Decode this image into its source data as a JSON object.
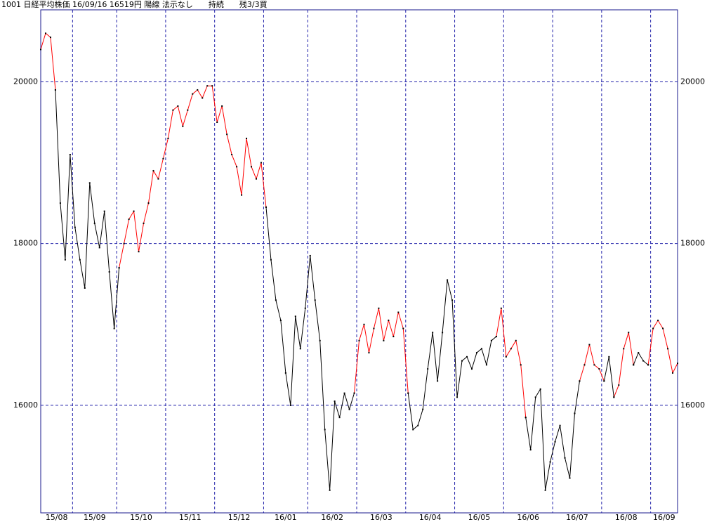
{
  "chart_data": {
    "type": "line",
    "title": "1001 日経平均株価 16/09/16 16519円 陽線 法示なし　　持続　　残3/3買",
    "categories": [
      "15/08",
      null,
      null,
      null,
      null,
      null,
      null,
      "15/09",
      null,
      null,
      null,
      null,
      null,
      null,
      null,
      null,
      "15/10",
      null,
      null,
      null,
      null,
      null,
      null,
      null,
      null,
      null,
      "15/11",
      null,
      null,
      null,
      null,
      null,
      null,
      null,
      null,
      null,
      "15/12",
      null,
      null,
      null,
      null,
      null,
      null,
      null,
      null,
      null,
      "16/01",
      null,
      null,
      null,
      null,
      null,
      null,
      null,
      null,
      "16/02",
      null,
      null,
      null,
      null,
      null,
      null,
      null,
      null,
      null,
      "16/03",
      null,
      null,
      null,
      null,
      null,
      null,
      null,
      null,
      null,
      "16/04",
      null,
      null,
      null,
      null,
      null,
      null,
      null,
      null,
      null,
      "16/05",
      null,
      null,
      null,
      null,
      null,
      null,
      null,
      null,
      null,
      "16/06",
      null,
      null,
      null,
      null,
      null,
      null,
      null,
      null,
      null,
      "16/07",
      null,
      null,
      null,
      null,
      null,
      null,
      null,
      null,
      null,
      "16/08",
      null,
      null,
      null,
      null,
      null,
      null,
      null,
      null,
      null,
      "16/09",
      null,
      null,
      null,
      null,
      null
    ],
    "series": [
      {
        "color": "#ff0000",
        "values": [
          20400,
          20600,
          20550,
          19900,
          null,
          null,
          null,
          null,
          null,
          null,
          null,
          null,
          null,
          null,
          null,
          null,
          17700,
          18000,
          18300,
          18400,
          17900,
          18250,
          18500,
          18900,
          18800,
          19050,
          19300,
          19650,
          19700,
          19450,
          19650,
          19850,
          19900,
          19800,
          19950,
          19950,
          19500,
          19700,
          19350,
          19100,
          18950,
          18600,
          19300,
          18950,
          18800,
          19000,
          18450,
          null,
          null,
          null,
          null,
          null,
          null,
          null,
          null,
          null,
          null,
          null,
          null,
          null,
          null,
          null,
          null,
          null,
          16150,
          16800,
          17000,
          16650,
          16950,
          17200,
          16800,
          17050,
          16850,
          17150,
          16950,
          16150,
          null,
          null,
          null,
          null,
          null,
          null,
          null,
          null,
          null,
          null,
          null,
          null,
          null,
          null,
          null,
          null,
          null,
          16850,
          17200,
          16600,
          16700,
          16800,
          16500,
          15850,
          null,
          null,
          null,
          null,
          null,
          null,
          null,
          null,
          null,
          null,
          16300,
          16500,
          16750,
          16500,
          16450,
          16300,
          null,
          16100,
          16250,
          16700,
          16900,
          16500,
          null,
          null,
          16500,
          16950,
          17050,
          16950,
          16700,
          16400,
          16519
        ]
      },
      {
        "color": "#000000",
        "values": [
          null,
          null,
          null,
          19900,
          18500,
          17800,
          19100,
          18200,
          17800,
          17450,
          18750,
          18250,
          17950,
          18400,
          17650,
          16950,
          17700,
          null,
          null,
          null,
          null,
          null,
          null,
          null,
          null,
          null,
          null,
          null,
          null,
          null,
          null,
          null,
          null,
          null,
          null,
          null,
          null,
          null,
          null,
          null,
          null,
          null,
          null,
          null,
          null,
          null,
          18450,
          17800,
          17300,
          17050,
          16400,
          16000,
          17100,
          16700,
          17200,
          17850,
          17300,
          16800,
          15700,
          14950,
          16050,
          15850,
          16150,
          15950,
          16150,
          null,
          null,
          null,
          null,
          null,
          null,
          null,
          null,
          null,
          null,
          16150,
          15700,
          15750,
          15950,
          16450,
          16900,
          16300,
          16900,
          17550,
          17300,
          16100,
          16550,
          16600,
          16450,
          16650,
          16700,
          16500,
          16800,
          16850,
          null,
          null,
          null,
          null,
          null,
          15850,
          15450,
          16100,
          16200,
          14950,
          15300,
          15550,
          15750,
          15350,
          15100,
          15900,
          16300,
          null,
          null,
          null,
          null,
          16300,
          16600,
          16100,
          null,
          null,
          null,
          16500,
          16650,
          16550,
          16500,
          null,
          null,
          null,
          null,
          null,
          null
        ]
      }
    ],
    "ylim": [
      14670,
      20890
    ],
    "yticks": [
      16000,
      18000,
      20000
    ],
    "grid": true
  }
}
